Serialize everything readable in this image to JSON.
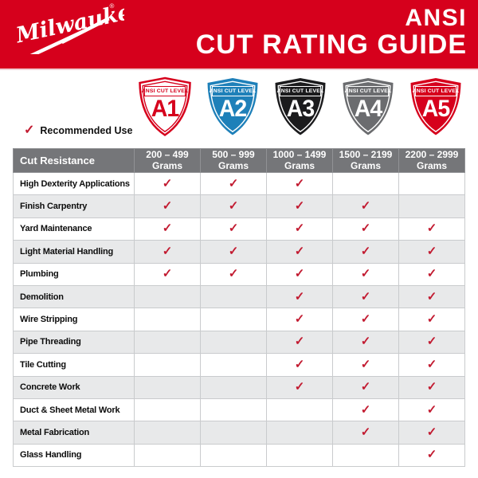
{
  "header": {
    "brand": "Milwaukee",
    "reg_mark": "®",
    "title_line1": "ANSI",
    "title_line2": "CUT RATING GUIDE",
    "background_color": "#D6001C",
    "text_color": "#FFFFFF"
  },
  "legend": {
    "check_glyph": "✓",
    "label": "Recommended Use",
    "check_color": "#C21A30"
  },
  "shields": [
    {
      "level": "A1",
      "band_label": "ANSI CUT LEVEL",
      "fill": "#FFFFFF",
      "outline": "#D6001C",
      "outline_width": 2.5,
      "accent": "#D6001C"
    },
    {
      "level": "A2",
      "band_label": "ANSI CUT LEVEL",
      "fill": "#1E80B9",
      "outline": "none",
      "outline_width": 0,
      "accent": "#FFFFFF"
    },
    {
      "level": "A3",
      "band_label": "ANSI CUT LEVEL",
      "fill": "#1B1B1D",
      "outline": "none",
      "outline_width": 0,
      "accent": "#FFFFFF"
    },
    {
      "level": "A4",
      "band_label": "ANSI CUT LEVEL",
      "fill": "#6B6C6F",
      "outline": "none",
      "outline_width": 0,
      "accent": "#FFFFFF"
    },
    {
      "level": "A5",
      "band_label": "ANSI CUT LEVEL",
      "fill": "#D6001C",
      "outline": "none",
      "outline_width": 0,
      "accent": "#FFFFFF"
    }
  ],
  "table": {
    "corner_header": "Cut Resistance",
    "check_glyph": "✓",
    "column_headers": [
      {
        "range": "200 – 499",
        "unit": "Grams"
      },
      {
        "range": "500 – 999",
        "unit": "Grams"
      },
      {
        "range": "1000 – 1499",
        "unit": "Grams"
      },
      {
        "range": "1500 – 2199",
        "unit": "Grams"
      },
      {
        "range": "2200 – 2999",
        "unit": "Grams"
      }
    ],
    "rows": [
      {
        "label": "High Dexterity Applications",
        "checks": [
          true,
          true,
          true,
          false,
          false
        ]
      },
      {
        "label": "Finish Carpentry",
        "checks": [
          true,
          true,
          true,
          true,
          false
        ]
      },
      {
        "label": "Yard Maintenance",
        "checks": [
          true,
          true,
          true,
          true,
          true
        ]
      },
      {
        "label": "Light Material Handling",
        "checks": [
          true,
          true,
          true,
          true,
          true
        ]
      },
      {
        "label": "Plumbing",
        "checks": [
          true,
          true,
          true,
          true,
          true
        ]
      },
      {
        "label": "Demolition",
        "checks": [
          false,
          false,
          true,
          true,
          true
        ]
      },
      {
        "label": "Wire Stripping",
        "checks": [
          false,
          false,
          true,
          true,
          true
        ]
      },
      {
        "label": "Pipe Threading",
        "checks": [
          false,
          false,
          true,
          true,
          true
        ]
      },
      {
        "label": "Tile Cutting",
        "checks": [
          false,
          false,
          true,
          true,
          true
        ]
      },
      {
        "label": "Concrete Work",
        "checks": [
          false,
          false,
          true,
          true,
          true
        ]
      },
      {
        "label": "Duct & Sheet Metal Work",
        "checks": [
          false,
          false,
          false,
          true,
          true
        ]
      },
      {
        "label": "Metal Fabrication",
        "checks": [
          false,
          false,
          false,
          true,
          true
        ]
      },
      {
        "label": "Glass Handling",
        "checks": [
          false,
          false,
          false,
          false,
          true
        ]
      }
    ],
    "colors": {
      "header_bg": "#757679",
      "header_text": "#FFFFFF",
      "row_alt_bg": "#E8E9EA",
      "border": "#C9CBCD",
      "check": "#C21A30"
    }
  }
}
